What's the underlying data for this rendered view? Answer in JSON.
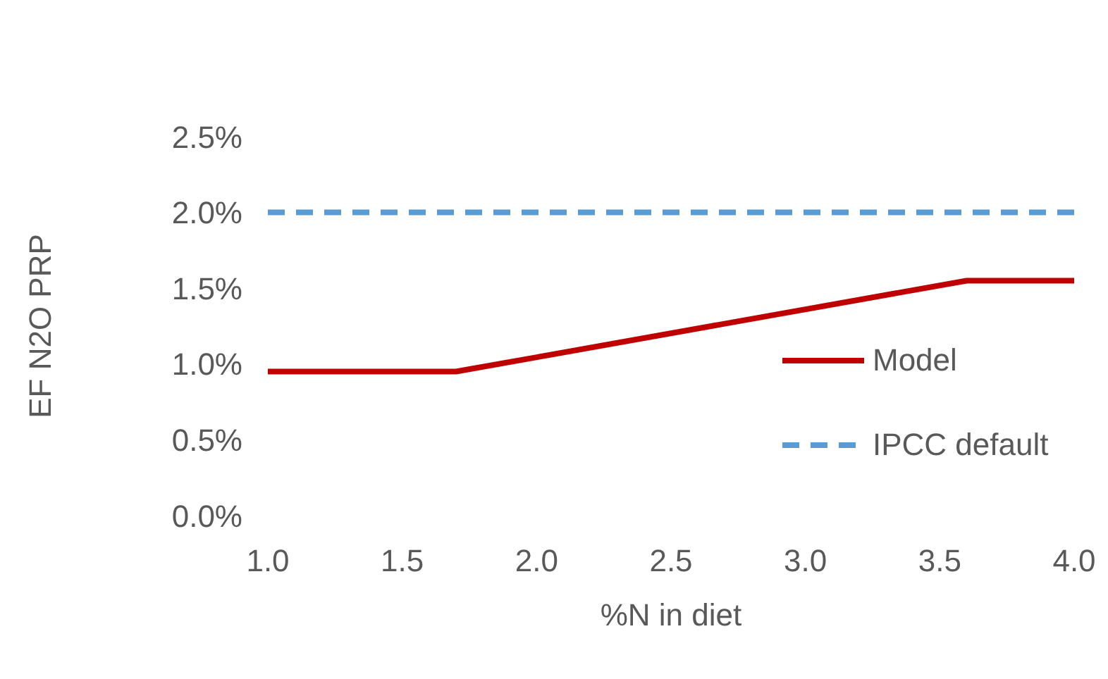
{
  "chart_data": {
    "type": "line",
    "xlabel": "%N in diet",
    "ylabel": "EF N2O PRP",
    "xlim": [
      1.0,
      4.0
    ],
    "xticks": [
      {
        "value": 1,
        "label": "1.0"
      },
      {
        "value": 1.5,
        "label": "1.5"
      },
      {
        "value": 2,
        "label": "2.0"
      },
      {
        "value": 2.5,
        "label": "2.5"
      },
      {
        "value": 3,
        "label": "3.0"
      },
      {
        "value": 3.5,
        "label": "3.5"
      },
      {
        "value": 4,
        "label": "4.0"
      }
    ],
    "ylim": [
      0,
      2.5
    ],
    "yticks": [
      {
        "value": 0,
        "label": "0.0%"
      },
      {
        "value": 0.5,
        "label": "0.5%"
      },
      {
        "value": 1,
        "label": "1.0%"
      },
      {
        "value": 1.5,
        "label": "1.5%"
      },
      {
        "value": 2,
        "label": "2.0%"
      },
      {
        "value": 2.5,
        "label": "2.5%"
      }
    ],
    "series": [
      {
        "name": "Model",
        "color": "#c00000",
        "x": [
          1.0,
          1.7,
          3.6,
          4.0
        ],
        "values": [
          0.95,
          0.95,
          1.55,
          1.55
        ],
        "line_style": "solid"
      },
      {
        "name": "IPCC default",
        "color": "#5b9bd5",
        "x": [
          1.0,
          4.0
        ],
        "values": [
          2.0,
          2.0
        ],
        "line_style": "dashed"
      }
    ],
    "marker": "none",
    "grid": false,
    "legend": "right"
  }
}
